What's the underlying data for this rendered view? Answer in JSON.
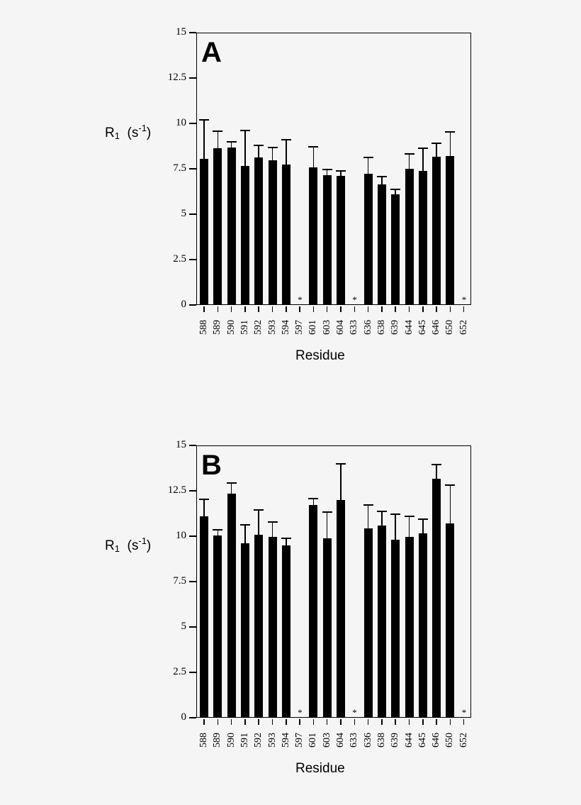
{
  "chart_data": [
    {
      "type": "bar",
      "panel_label": "A",
      "title": "",
      "xlabel": "Residue",
      "ylabel": "R1 (s-1)",
      "ylabel_parts": {
        "main": "R",
        "sub": "1",
        "unit_open": "(s",
        "sup": "-1",
        "unit_close": ")"
      },
      "ylim": [
        0,
        15
      ],
      "yticks": [
        "0",
        "2.5",
        "5",
        "7.5",
        "10",
        "12.5",
        "15"
      ],
      "grid": false,
      "legend": null,
      "categories": [
        "588",
        "589",
        "590",
        "591",
        "592",
        "593",
        "594",
        "597",
        "601",
        "603",
        "604",
        "633",
        "636",
        "638",
        "639",
        "644",
        "645",
        "646",
        "650",
        "652"
      ],
      "values": [
        8.05,
        8.63,
        8.67,
        7.66,
        8.12,
        7.97,
        7.73,
        null,
        7.58,
        7.15,
        7.11,
        null,
        7.23,
        6.64,
        6.09,
        7.5,
        7.38,
        8.16,
        8.2,
        null
      ],
      "error_upper": [
        10.2,
        9.57,
        9.0,
        9.6,
        8.79,
        8.67,
        9.1,
        null,
        8.71,
        7.46,
        7.38,
        null,
        8.12,
        7.07,
        6.37,
        8.32,
        8.63,
        8.9,
        9.53,
        null
      ],
      "annotations": [
        {
          "category": "597",
          "text": "*"
        },
        {
          "category": "633",
          "text": "*"
        },
        {
          "category": "652",
          "text": "*"
        }
      ]
    },
    {
      "type": "bar",
      "panel_label": "B",
      "title": "",
      "xlabel": "Residue",
      "ylabel": "R1 (s-1)",
      "ylabel_parts": {
        "main": "R",
        "sub": "1",
        "unit_open": "(s",
        "sup": "-1",
        "unit_close": ")"
      },
      "ylim": [
        0,
        15
      ],
      "yticks": [
        "0",
        "2.5",
        "5",
        "7.5",
        "10",
        "12.5",
        "15"
      ],
      "grid": false,
      "legend": null,
      "categories": [
        "588",
        "589",
        "590",
        "591",
        "592",
        "593",
        "594",
        "597",
        "601",
        "603",
        "604",
        "633",
        "636",
        "638",
        "639",
        "644",
        "645",
        "646",
        "650",
        "652"
      ],
      "values": [
        11.09,
        10.04,
        12.34,
        9.61,
        10.08,
        9.96,
        9.49,
        null,
        11.72,
        9.88,
        11.99,
        null,
        10.43,
        10.59,
        9.8,
        9.96,
        10.16,
        13.16,
        10.7,
        null
      ],
      "error_upper": [
        12.03,
        10.35,
        12.93,
        10.63,
        11.45,
        10.78,
        9.88,
        null,
        12.06,
        11.33,
        13.98,
        null,
        11.72,
        11.37,
        11.21,
        11.09,
        10.94,
        13.95,
        12.81,
        null
      ],
      "annotations": [
        {
          "category": "597",
          "text": "*"
        },
        {
          "category": "633",
          "text": "*"
        },
        {
          "category": "652",
          "text": "*"
        }
      ]
    }
  ]
}
